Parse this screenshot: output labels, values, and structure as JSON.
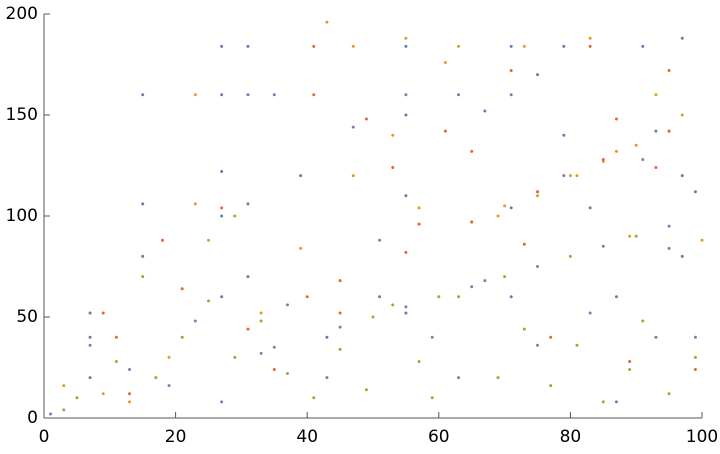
{
  "chart_data": {
    "type": "scatter",
    "xlim": [
      0,
      100
    ],
    "ylim": [
      0,
      200
    ],
    "xticks": [
      0,
      20,
      40,
      60,
      80,
      100
    ],
    "yticks": [
      0,
      50,
      100,
      150,
      200
    ],
    "series": [
      {
        "color": "#5e81b5",
        "x": [
          7,
          7,
          7,
          15,
          15,
          15,
          27,
          27,
          27,
          27,
          27,
          31,
          31,
          31,
          31,
          35,
          39,
          43,
          51,
          55,
          55,
          55,
          55,
          63,
          67,
          71,
          71,
          71,
          75,
          79,
          79,
          83,
          87,
          91,
          93,
          93,
          97,
          97,
          97,
          99
        ],
        "y": [
          52,
          40,
          20,
          160,
          106,
          80,
          184,
          160,
          122,
          100,
          60,
          184,
          160,
          106,
          70,
          160,
          120,
          40,
          60,
          184,
          150,
          110,
          52,
          160,
          152,
          184,
          104,
          60,
          170,
          184,
          140,
          104,
          60,
          184,
          142,
          40,
          188,
          120,
          80,
          112
        ]
      },
      {
        "color": "#e19c24",
        "x": [
          3,
          9,
          13,
          19,
          23,
          23,
          25,
          33,
          39,
          43,
          47,
          47,
          53,
          55,
          57,
          61,
          63,
          69,
          73,
          75,
          81,
          83,
          87,
          89,
          93,
          97,
          100,
          65,
          70,
          75,
          80,
          85,
          90,
          95
        ],
        "y": [
          16,
          12,
          8,
          30,
          160,
          106,
          88,
          52,
          84,
          196,
          184,
          120,
          140,
          188,
          104,
          176,
          184,
          100,
          184,
          110,
          120,
          188,
          132,
          90,
          160,
          150,
          88,
          97,
          105,
          112,
          120,
          127,
          135,
          142
        ]
      },
      {
        "color": "#8fb032",
        "x": [
          3,
          5,
          11,
          15,
          17,
          21,
          25,
          29,
          29,
          33,
          37,
          41,
          45,
          49,
          53,
          57,
          59,
          63,
          69,
          73,
          77,
          81,
          85,
          89,
          91,
          95,
          99,
          50,
          60,
          70,
          80,
          90
        ],
        "y": [
          4,
          10,
          28,
          70,
          20,
          40,
          58,
          30,
          100,
          48,
          22,
          10,
          34,
          14,
          56,
          28,
          10,
          60,
          20,
          44,
          16,
          36,
          8,
          24,
          48,
          12,
          30,
          50,
          60,
          70,
          80,
          90
        ]
      },
      {
        "color": "#eb6235",
        "x": [
          9,
          11,
          13,
          18,
          21,
          27,
          31,
          35,
          41,
          41,
          45,
          49,
          53,
          57,
          61,
          65,
          71,
          73,
          77,
          83,
          87,
          89,
          93,
          95,
          99,
          40,
          45,
          55,
          65,
          75,
          85,
          95
        ],
        "y": [
          52,
          40,
          12,
          88,
          64,
          104,
          44,
          24,
          184,
          160,
          52,
          148,
          124,
          96,
          142,
          132,
          172,
          86,
          40,
          184,
          148,
          28,
          124,
          172,
          24,
          60,
          68,
          82,
          97,
          112,
          128,
          142
        ]
      },
      {
        "color": "#8778b3",
        "x": [
          1,
          7,
          13,
          19,
          23,
          27,
          33,
          37,
          43,
          47,
          51,
          55,
          59,
          63,
          67,
          71,
          75,
          79,
          83,
          87,
          91,
          95,
          99,
          35,
          45,
          55,
          65,
          75,
          85,
          95
        ],
        "y": [
          2,
          36,
          24,
          16,
          48,
          8,
          32,
          56,
          20,
          144,
          88,
          160,
          40,
          20,
          68,
          160,
          36,
          120,
          52,
          8,
          128,
          84,
          40,
          35,
          45,
          55,
          65,
          75,
          85,
          95
        ]
      }
    ]
  }
}
